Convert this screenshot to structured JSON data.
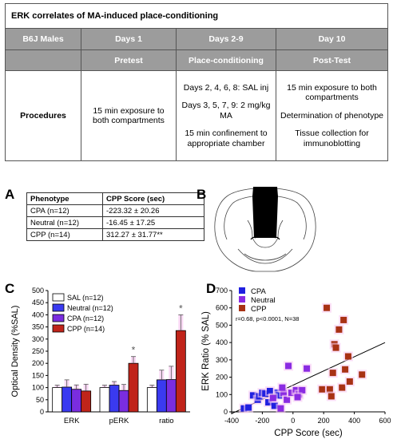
{
  "design": {
    "title": "ERK correlates of MA-induced place-conditioning",
    "header": [
      "B6J Males",
      "Days 1",
      "Days 2-9",
      "Day 10"
    ],
    "subheader": [
      "",
      "Pretest",
      "Place-conditioning",
      "Post-Test"
    ],
    "procedures_label": "Procedures",
    "day1": [
      "15 min exposure to both compartments"
    ],
    "days29": [
      "Days 2, 4, 6, 8: SAL inj",
      "Days 3, 5, 7, 9: 2 mg/kg MA",
      "15 min confinement to appropriate chamber"
    ],
    "day10": [
      "15 min exposure to both compartments",
      "Determination of phenotype",
      "Tissue collection for immunoblotting"
    ]
  },
  "panel_a": {
    "letter": "A",
    "headers": [
      "Phenotype",
      "CPP Score (sec)"
    ],
    "rows": [
      [
        "CPA (n=12)",
        "-223.32 ± 20.26"
      ],
      [
        "Neutral (n=12)",
        "-16.45 ± 17.25"
      ],
      [
        "CPP (n=14)",
        "312.27 ± 31.77**"
      ]
    ]
  },
  "panel_b": {
    "letter": "B"
  },
  "chart_data": [
    {
      "panel": "C",
      "type": "bar",
      "ylabel": "Optical Density (%SAL)",
      "categories": [
        "ERK",
        "pERK",
        "ratio"
      ],
      "ylim": [
        0,
        500
      ],
      "yticks": [
        0,
        50,
        100,
        150,
        200,
        250,
        300,
        350,
        400,
        450,
        500
      ],
      "series": [
        {
          "name": "SAL (n=12)",
          "color": "#ffffff",
          "values": [
            100,
            100,
            100
          ],
          "errors": [
            10,
            10,
            10
          ]
        },
        {
          "name": "Neutral (n=12)",
          "color": "#3a3af0",
          "values": [
            102,
            110,
            132
          ],
          "errors": [
            30,
            15,
            40
          ]
        },
        {
          "name": "CPA (n=12)",
          "color": "#7a2de0",
          "values": [
            93,
            88,
            133
          ],
          "errors": [
            18,
            25,
            55
          ]
        },
        {
          "name": "CPP (n=14)",
          "color": "#c0241a",
          "values": [
            86,
            200,
            335
          ],
          "errors": [
            28,
            28,
            65
          ]
        }
      ],
      "annotations": [
        "*",
        "*"
      ],
      "legend": "top-left"
    },
    {
      "panel": "D",
      "type": "scatter",
      "xlabel": "CPP Score (sec)",
      "ylabel": "ERK Ratio (% SAL)",
      "xlim": [
        -400,
        600
      ],
      "ylim": [
        0,
        700
      ],
      "xticks": [
        -400,
        -200,
        0,
        200,
        400,
        600
      ],
      "yticks": [
        0,
        100,
        200,
        300,
        400,
        500,
        600,
        700
      ],
      "annotation": "r=0.68, p<0.0001, N=38",
      "legend": "top-left",
      "fit_line": {
        "x": [
          -400,
          600
        ],
        "y": [
          -10,
          400
        ]
      },
      "series": [
        {
          "name": "CPA",
          "color": "#2020e0",
          "points": [
            [
              -320,
              20
            ],
            [
              -290,
              25
            ],
            [
              -260,
              95
            ],
            [
              -230,
              70
            ],
            [
              -220,
              90
            ],
            [
              -200,
              110
            ],
            [
              -180,
              105
            ],
            [
              -160,
              55
            ],
            [
              -150,
              120
            ],
            [
              -120,
              35
            ],
            [
              -100,
              110
            ],
            [
              -90,
              95
            ]
          ]
        },
        {
          "name": "Neutral",
          "color": "#8a2be2",
          "points": [
            [
              -130,
              80
            ],
            [
              -80,
              20
            ],
            [
              -60,
              110
            ],
            [
              -40,
              70
            ],
            [
              -30,
              265
            ],
            [
              -10,
              110
            ],
            [
              20,
              125
            ],
            [
              40,
              100
            ],
            [
              60,
              125
            ],
            [
              90,
              250
            ],
            [
              -70,
              140
            ],
            [
              30,
              85
            ]
          ]
        },
        {
          "name": "CPP",
          "color": "#a83214",
          "points": [
            [
              190,
              130
            ],
            [
              220,
              600
            ],
            [
              240,
              130
            ],
            [
              260,
              225
            ],
            [
              270,
              390
            ],
            [
              280,
              370
            ],
            [
              300,
              475
            ],
            [
              320,
              140
            ],
            [
              330,
              530
            ],
            [
              340,
              245
            ],
            [
              360,
              320
            ],
            [
              370,
              175
            ],
            [
              450,
              215
            ],
            [
              250,
              90
            ]
          ]
        }
      ]
    }
  ]
}
